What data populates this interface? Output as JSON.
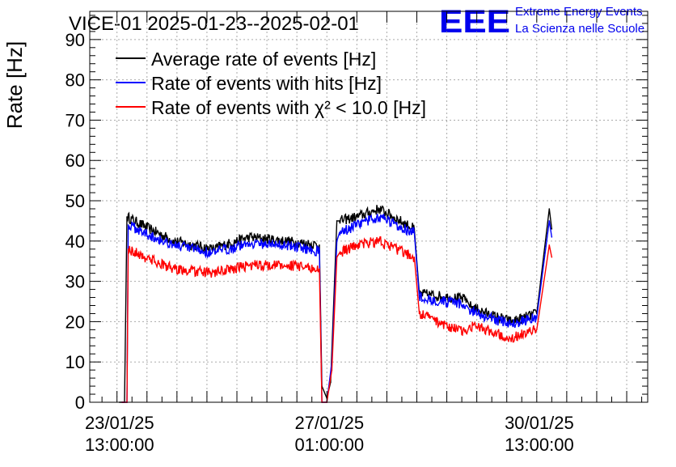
{
  "chart_data": {
    "type": "line",
    "title": "VICE-01 2025-01-23--2025-02-01",
    "ylabel": "Rate [Hz]",
    "xlabel": "",
    "ylim": [
      0,
      97
    ],
    "yticks": [
      0,
      10,
      20,
      30,
      40,
      50,
      60,
      70,
      80,
      90
    ],
    "x_unit": "hours since 23/01/25 00:00",
    "xlim": [
      1.1,
      224.4
    ],
    "xticks": [
      {
        "x": 13,
        "date": "23/01/25",
        "time": "13:00:00"
      },
      {
        "x": 97,
        "date": "27/01/25",
        "time": "01:00:00"
      },
      {
        "x": 181,
        "date": "30/01/25",
        "time": "13:00:00"
      }
    ],
    "grid": true,
    "legend_position": "top-left",
    "logo": {
      "text": "EEE",
      "line1": "Extreme Energy Events",
      "line2": "La Scienza nelle Scuole"
    },
    "series": [
      {
        "name": "Average rate of events [Hz]",
        "color": "#000000",
        "x": [
          13,
          15,
          16,
          25,
          35,
          50,
          65,
          80,
          93,
          94,
          96,
          97.5,
          100,
          101,
          108,
          117,
          131,
          133,
          152,
          153,
          160,
          170,
          180,
          185,
          186
        ],
        "y": [
          0,
          0,
          46,
          43,
          40,
          38,
          41,
          40,
          39,
          4,
          1,
          5,
          45,
          45,
          46,
          48,
          43,
          27,
          25.5,
          24,
          22,
          20,
          22,
          48,
          43
        ]
      },
      {
        "name": "Rate of events with hits [Hz]",
        "color": "#0000ff",
        "x": [
          14,
          16,
          16.5,
          25,
          35,
          50,
          65,
          80,
          93,
          94,
          96,
          98,
          100,
          101,
          108,
          117,
          131,
          133,
          152,
          153,
          160,
          170,
          180,
          185,
          186
        ],
        "y": [
          0,
          0,
          44,
          41.5,
          39,
          37,
          39.5,
          39,
          37.5,
          0,
          0,
          10,
          40,
          42,
          44,
          46,
          42,
          26,
          24,
          23,
          21,
          19.5,
          21,
          45,
          41
        ]
      },
      {
        "name": "Rate of events with χ² < 10.0 [Hz]",
        "color": "#ff0000",
        "x": [
          14,
          16,
          16.5,
          25,
          35,
          50,
          65,
          80,
          93,
          94,
          96,
          98,
          100,
          101,
          108,
          117,
          131,
          133,
          152,
          153,
          160,
          170,
          180,
          185,
          186
        ],
        "y": [
          0,
          0,
          38,
          35.5,
          33,
          32,
          34,
          34,
          33,
          0,
          0,
          8,
          36,
          37,
          39,
          40,
          36,
          22,
          17,
          19,
          18,
          16,
          18,
          39,
          36
        ]
      }
    ]
  }
}
